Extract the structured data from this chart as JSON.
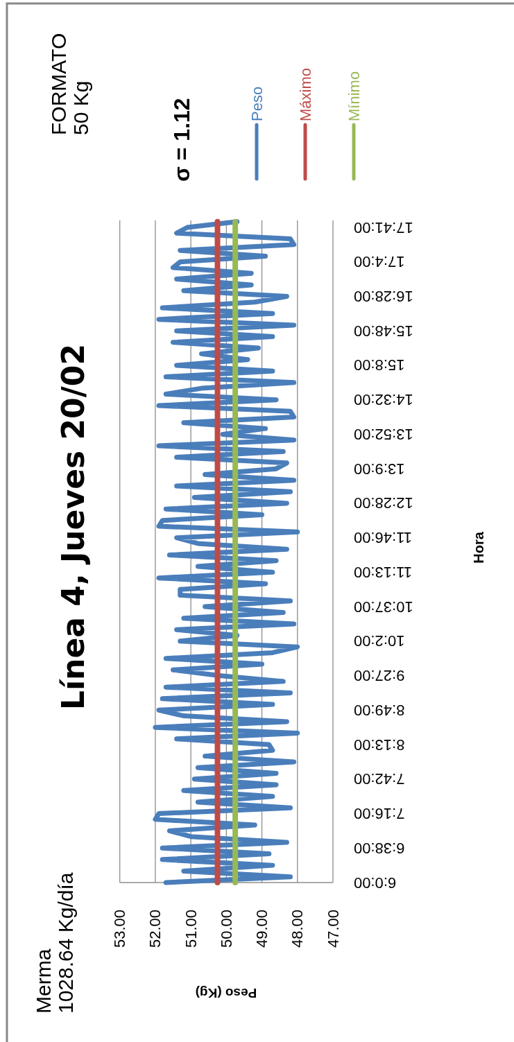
{
  "chart_data": {
    "type": "line",
    "orientation": "horizontal",
    "title": "Línea 4, Jueves 20/02",
    "xlabel": "Peso (Kg)",
    "ylabel": "Hora",
    "annotations": [
      "Merma",
      "1028.64 Kg/día",
      "FORMATO",
      "50 Kg",
      "σ = 1.12"
    ],
    "categories": [
      null,
      "17:41:00",
      null,
      null,
      null,
      null,
      null,
      "17:4:00",
      null,
      null,
      null,
      null,
      null,
      "16:28:00",
      null,
      null,
      null,
      null,
      null,
      "15:48:00",
      null,
      null,
      null,
      null,
      null,
      "15:8:00",
      null,
      null,
      null,
      null,
      null,
      "14:32:00",
      null,
      null,
      null,
      null,
      null,
      "13:52:00",
      null,
      null,
      null,
      null,
      null,
      "13:9:00",
      null,
      null,
      null,
      null,
      null,
      "12:28:00",
      null,
      null,
      null,
      null,
      null,
      "11:46:00",
      null,
      null,
      null,
      null,
      null,
      "11:13:00",
      null,
      null,
      null,
      null,
      null,
      "10:37:00",
      null,
      null,
      null,
      null,
      null,
      "10:2:00",
      null,
      null,
      null,
      null,
      null,
      "9:27:00",
      null,
      null,
      null,
      null,
      null,
      "8:49:00",
      null,
      null,
      null,
      null,
      null,
      "8:13:00",
      null,
      null,
      null,
      null,
      null,
      "7:42:00",
      null,
      null,
      null,
      null,
      null,
      "7:16:00",
      null,
      null,
      null,
      null,
      null,
      "6:38:00",
      null,
      null,
      null,
      null,
      null,
      "6:0:00"
    ],
    "series": [
      {
        "name": "Peso",
        "color": "#4a7ebb",
        "values": [
          49.7,
          51.1,
          51.4,
          48.2,
          48.1,
          51.3,
          48.9,
          51.3,
          51.5,
          49.3,
          51.4,
          49.3,
          51.2,
          48.3,
          49.2,
          51.8,
          48.7,
          51.9,
          48.1,
          51.4,
          48.7,
          51.5,
          49.1,
          50.7,
          49.4,
          51.4,
          48.7,
          51.7,
          48.1,
          50.7,
          51.7,
          48.6,
          51.9,
          48.2,
          48.1,
          51.2,
          48.9,
          50.1,
          48.1,
          51.9,
          48.4,
          51.4,
          48.3,
          48.6,
          50.6,
          48.1,
          51.4,
          48.2,
          50.9,
          48.3,
          51.7,
          49.0,
          51.8,
          51.9,
          48.0,
          51.4,
          50.8,
          48.3,
          51.6,
          48.6,
          50.8,
          48.7,
          51.9,
          48.9,
          51.3,
          51.3,
          48.2,
          50.6,
          48.4,
          51.2,
          48.1,
          51.4,
          49.7,
          51.3,
          48.0,
          48.7,
          51.7,
          49.0,
          51.5,
          50.2,
          48.4,
          51.7,
          48.2,
          51.8,
          48.7,
          51.9,
          51.2,
          48.3,
          52.0,
          48.0,
          51.4,
          48.8,
          48.7,
          50.6,
          48.1,
          50.8,
          48.6,
          50.9,
          48.6,
          51.2,
          48.7,
          50.8,
          48.2,
          51.9,
          52.0,
          49.2,
          51.6,
          51.0,
          48.3,
          51.8,
          48.8,
          51.8,
          48.7,
          51.2,
          48.2,
          51.7
        ]
      },
      {
        "name": "Máximo",
        "color": "#be4b48",
        "values": [
          50.25,
          50.25,
          50.25,
          50.25,
          50.25,
          50.25,
          50.25,
          50.25,
          50.25,
          50.25,
          50.25,
          50.25,
          50.25,
          50.25,
          50.25,
          50.25,
          50.25,
          50.25,
          50.25,
          50.25,
          50.25,
          50.25,
          50.25,
          50.25,
          50.25,
          50.25,
          50.25,
          50.25,
          50.25,
          50.25,
          50.25,
          50.25,
          50.25,
          50.25,
          50.25,
          50.25,
          50.25,
          50.25,
          50.25,
          50.25,
          50.25,
          50.25,
          50.25,
          50.25,
          50.25,
          50.25,
          50.25,
          50.25,
          50.25,
          50.25,
          50.25,
          50.25,
          50.25,
          50.25,
          50.25,
          50.25,
          50.25,
          50.25,
          50.25,
          50.25,
          50.25,
          50.25,
          50.25,
          50.25,
          50.25,
          50.25,
          50.25,
          50.25,
          50.25,
          50.25,
          50.25,
          50.25,
          50.25,
          50.25,
          50.25,
          50.25,
          50.25,
          50.25,
          50.25,
          50.25,
          50.25,
          50.25,
          50.25,
          50.25,
          50.25,
          50.25,
          50.25,
          50.25,
          50.25,
          50.25,
          50.25,
          50.25,
          50.25,
          50.25,
          50.25,
          50.25,
          50.25,
          50.25,
          50.25,
          50.25,
          50.25,
          50.25,
          50.25,
          50.25,
          50.25,
          50.25,
          50.25,
          50.25,
          50.25,
          50.25,
          50.25,
          50.25,
          50.25,
          50.25,
          50.25,
          50.25
        ]
      },
      {
        "name": "Mínimo",
        "color": "#98b954",
        "values": [
          49.75,
          49.75,
          49.75,
          49.75,
          49.75,
          49.75,
          49.75,
          49.75,
          49.75,
          49.75,
          49.75,
          49.75,
          49.75,
          49.75,
          49.75,
          49.75,
          49.75,
          49.75,
          49.75,
          49.75,
          49.75,
          49.75,
          49.75,
          49.75,
          49.75,
          49.75,
          49.75,
          49.75,
          49.75,
          49.75,
          49.75,
          49.75,
          49.75,
          49.75,
          49.75,
          49.75,
          49.75,
          49.75,
          49.75,
          49.75,
          49.75,
          49.75,
          49.75,
          49.75,
          49.75,
          49.75,
          49.75,
          49.75,
          49.75,
          49.75,
          49.75,
          49.75,
          49.75,
          49.75,
          49.75,
          49.75,
          49.75,
          49.75,
          49.75,
          49.75,
          49.75,
          49.75,
          49.75,
          49.75,
          49.75,
          49.75,
          49.75,
          49.75,
          49.75,
          49.75,
          49.75,
          49.75,
          49.75,
          49.75,
          49.75,
          49.75,
          49.75,
          49.75,
          49.75,
          49.75,
          49.75,
          49.75,
          49.75,
          49.75,
          49.75,
          49.75,
          49.75,
          49.75,
          49.75,
          49.75,
          49.75,
          49.75,
          49.75,
          49.75,
          49.75,
          49.75,
          49.75,
          49.75,
          49.75,
          49.75,
          49.75,
          49.75,
          49.75,
          49.75,
          49.75,
          49.75,
          49.75,
          49.75,
          49.75,
          49.75,
          49.75,
          49.75,
          49.75,
          49.75,
          49.75,
          49.75
        ]
      }
    ],
    "xlim": [
      53,
      47
    ],
    "xticks": [
      {
        "value": 53,
        "label": "53.00"
      },
      {
        "value": 52,
        "label": "52.00"
      },
      {
        "value": 51,
        "label": "51.00"
      },
      {
        "value": 50,
        "label": "50.00"
      },
      {
        "value": 49,
        "label": "49.00"
      },
      {
        "value": 48,
        "label": "48.00"
      },
      {
        "value": 47,
        "label": "47.00"
      }
    ],
    "grid": "x",
    "legend": "top",
    "marker": "none",
    "line_style": "solid"
  }
}
